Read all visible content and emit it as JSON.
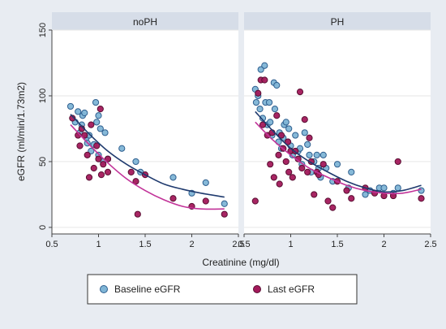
{
  "chart_data": {
    "type": "scatter",
    "xlabel": "Creatinine (mg/dl)",
    "ylabel": "eGFR (ml/min/1.73m2)",
    "xlim": [
      0.5,
      2.5
    ],
    "ylim": [
      -5,
      150
    ],
    "xticks": [
      0.5,
      1,
      1.5,
      2,
      2.5
    ],
    "xtick_labels": [
      "0.5",
      "1",
      "1.5",
      "2",
      "2.5"
    ],
    "yticks": [
      0,
      50,
      100,
      150
    ],
    "ytick_labels": [
      "0",
      "50",
      "100",
      "150"
    ],
    "grid": true,
    "legend": "bottom",
    "colors": {
      "background": "#e8ecf2",
      "panel": "#ffffff",
      "strip": "#d6dde8",
      "grid": "#e6e6e6",
      "baseline_fill": "#7fb5d6",
      "baseline_edge": "#2f5f8f",
      "baseline_line": "#1f3a6e",
      "last_fill": "#a3195b",
      "last_edge": "#5a0f33",
      "last_line": "#c23399"
    },
    "legend_labels": {
      "baseline": "Baseline eGFR",
      "last": "Last eGFR"
    },
    "panels": [
      {
        "name": "noPH",
        "series": [
          {
            "key": "baseline",
            "points": [
              [
                0.7,
                92
              ],
              [
                0.75,
                80
              ],
              [
                0.78,
                88
              ],
              [
                0.8,
                72
              ],
              [
                0.82,
                78
              ],
              [
                0.83,
                85
              ],
              [
                0.85,
                87
              ],
              [
                0.87,
                68
              ],
              [
                0.88,
                64
              ],
              [
                0.9,
                70
              ],
              [
                0.92,
                58
              ],
              [
                0.95,
                63
              ],
              [
                0.97,
                95
              ],
              [
                0.98,
                80
              ],
              [
                1.0,
                85
              ],
              [
                1.0,
                55
              ],
              [
                1.02,
                75
              ],
              [
                1.05,
                50
              ],
              [
                1.07,
                72
              ],
              [
                1.1,
                52
              ],
              [
                1.25,
                60
              ],
              [
                1.4,
                50
              ],
              [
                1.45,
                42
              ],
              [
                1.8,
                38
              ],
              [
                2.0,
                26
              ],
              [
                2.15,
                34
              ],
              [
                2.35,
                18
              ]
            ],
            "fit": [
              [
                0.7,
                86
              ],
              [
                0.9,
                71
              ],
              [
                1.1,
                58
              ],
              [
                1.3,
                48
              ],
              [
                1.5,
                40
              ],
              [
                1.7,
                33
              ],
              [
                1.9,
                29
              ],
              [
                2.1,
                26
              ],
              [
                2.35,
                23
              ]
            ]
          },
          {
            "key": "last",
            "points": [
              [
                0.72,
                83
              ],
              [
                0.78,
                70
              ],
              [
                0.8,
                62
              ],
              [
                0.82,
                75
              ],
              [
                0.85,
                70
              ],
              [
                0.88,
                55
              ],
              [
                0.9,
                38
              ],
              [
                0.92,
                78
              ],
              [
                0.95,
                45
              ],
              [
                0.98,
                62
              ],
              [
                1.0,
                52
              ],
              [
                1.02,
                90
              ],
              [
                1.03,
                40
              ],
              [
                1.05,
                48
              ],
              [
                1.1,
                42
              ],
              [
                1.1,
                52
              ],
              [
                1.35,
                42
              ],
              [
                1.4,
                35
              ],
              [
                1.42,
                10
              ],
              [
                1.5,
                40
              ],
              [
                1.8,
                22
              ],
              [
                2.0,
                16
              ],
              [
                2.15,
                20
              ],
              [
                2.35,
                10
              ]
            ],
            "fit": [
              [
                0.7,
                78
              ],
              [
                0.9,
                63
              ],
              [
                1.1,
                49
              ],
              [
                1.3,
                37
              ],
              [
                1.5,
                28
              ],
              [
                1.7,
                21
              ],
              [
                1.9,
                16
              ],
              [
                2.1,
                14
              ],
              [
                2.35,
                14
              ]
            ]
          }
        ]
      },
      {
        "name": "PH",
        "series": [
          {
            "key": "baseline",
            "points": [
              [
                0.62,
                105
              ],
              [
                0.63,
                95
              ],
              [
                0.65,
                100
              ],
              [
                0.67,
                90
              ],
              [
                0.68,
                120
              ],
              [
                0.7,
                83
              ],
              [
                0.72,
                123
              ],
              [
                0.73,
                95
              ],
              [
                0.75,
                78
              ],
              [
                0.77,
                95
              ],
              [
                0.78,
                80
              ],
              [
                0.8,
                70
              ],
              [
                0.82,
                110
              ],
              [
                0.83,
                90
              ],
              [
                0.85,
                108
              ],
              [
                0.87,
                65
              ],
              [
                0.88,
                72
              ],
              [
                0.9,
                60
              ],
              [
                0.92,
                68
              ],
              [
                0.93,
                78
              ],
              [
                0.95,
                80
              ],
              [
                0.97,
                65
              ],
              [
                0.98,
                75
              ],
              [
                1.0,
                62
              ],
              [
                1.02,
                55
              ],
              [
                1.05,
                70
              ],
              [
                1.08,
                58
              ],
              [
                1.1,
                60
              ],
              [
                1.12,
                48
              ],
              [
                1.15,
                72
              ],
              [
                1.18,
                63
              ],
              [
                1.2,
                55
              ],
              [
                1.22,
                42
              ],
              [
                1.25,
                50
              ],
              [
                1.28,
                55
              ],
              [
                1.3,
                45
              ],
              [
                1.32,
                38
              ],
              [
                1.35,
                55
              ],
              [
                1.38,
                45
              ],
              [
                1.45,
                35
              ],
              [
                1.5,
                48
              ],
              [
                1.62,
                30
              ],
              [
                1.65,
                42
              ],
              [
                1.8,
                25
              ],
              [
                1.85,
                28
              ],
              [
                1.95,
                30
              ],
              [
                2.0,
                30
              ],
              [
                2.1,
                26
              ],
              [
                2.15,
                30
              ],
              [
                2.4,
                28
              ]
            ],
            "fit": [
              [
                0.62,
                88
              ],
              [
                0.8,
                74
              ],
              [
                1.0,
                60
              ],
              [
                1.2,
                50
              ],
              [
                1.4,
                42
              ],
              [
                1.6,
                35
              ],
              [
                1.8,
                30
              ],
              [
                2.0,
                27
              ],
              [
                2.2,
                28
              ],
              [
                2.4,
                32
              ]
            ]
          },
          {
            "key": "last",
            "points": [
              [
                0.62,
                20
              ],
              [
                0.65,
                102
              ],
              [
                0.68,
                112
              ],
              [
                0.7,
                78
              ],
              [
                0.72,
                112
              ],
              [
                0.75,
                70
              ],
              [
                0.78,
                48
              ],
              [
                0.8,
                72
              ],
              [
                0.82,
                38
              ],
              [
                0.85,
                85
              ],
              [
                0.87,
                55
              ],
              [
                0.88,
                33
              ],
              [
                0.9,
                70
              ],
              [
                0.92,
                60
              ],
              [
                0.95,
                50
              ],
              [
                0.97,
                65
              ],
              [
                0.98,
                42
              ],
              [
                1.0,
                58
              ],
              [
                1.02,
                38
              ],
              [
                1.05,
                58
              ],
              [
                1.08,
                52
              ],
              [
                1.1,
                103
              ],
              [
                1.12,
                45
              ],
              [
                1.15,
                82
              ],
              [
                1.18,
                42
              ],
              [
                1.2,
                68
              ],
              [
                1.22,
                50
              ],
              [
                1.25,
                25
              ],
              [
                1.28,
                42
              ],
              [
                1.3,
                40
              ],
              [
                1.35,
                48
              ],
              [
                1.4,
                20
              ],
              [
                1.45,
                15
              ],
              [
                1.5,
                35
              ],
              [
                1.6,
                28
              ],
              [
                1.65,
                22
              ],
              [
                1.8,
                30
              ],
              [
                1.9,
                26
              ],
              [
                2.0,
                24
              ],
              [
                2.1,
                24
              ],
              [
                2.15,
                50
              ],
              [
                2.4,
                22
              ]
            ],
            "fit": [
              [
                0.62,
                80
              ],
              [
                0.8,
                67
              ],
              [
                1.0,
                55
              ],
              [
                1.2,
                45
              ],
              [
                1.4,
                38
              ],
              [
                1.6,
                32
              ],
              [
                1.8,
                28
              ],
              [
                2.0,
                26
              ],
              [
                2.2,
                26
              ],
              [
                2.4,
                29
              ]
            ]
          }
        ]
      }
    ]
  }
}
